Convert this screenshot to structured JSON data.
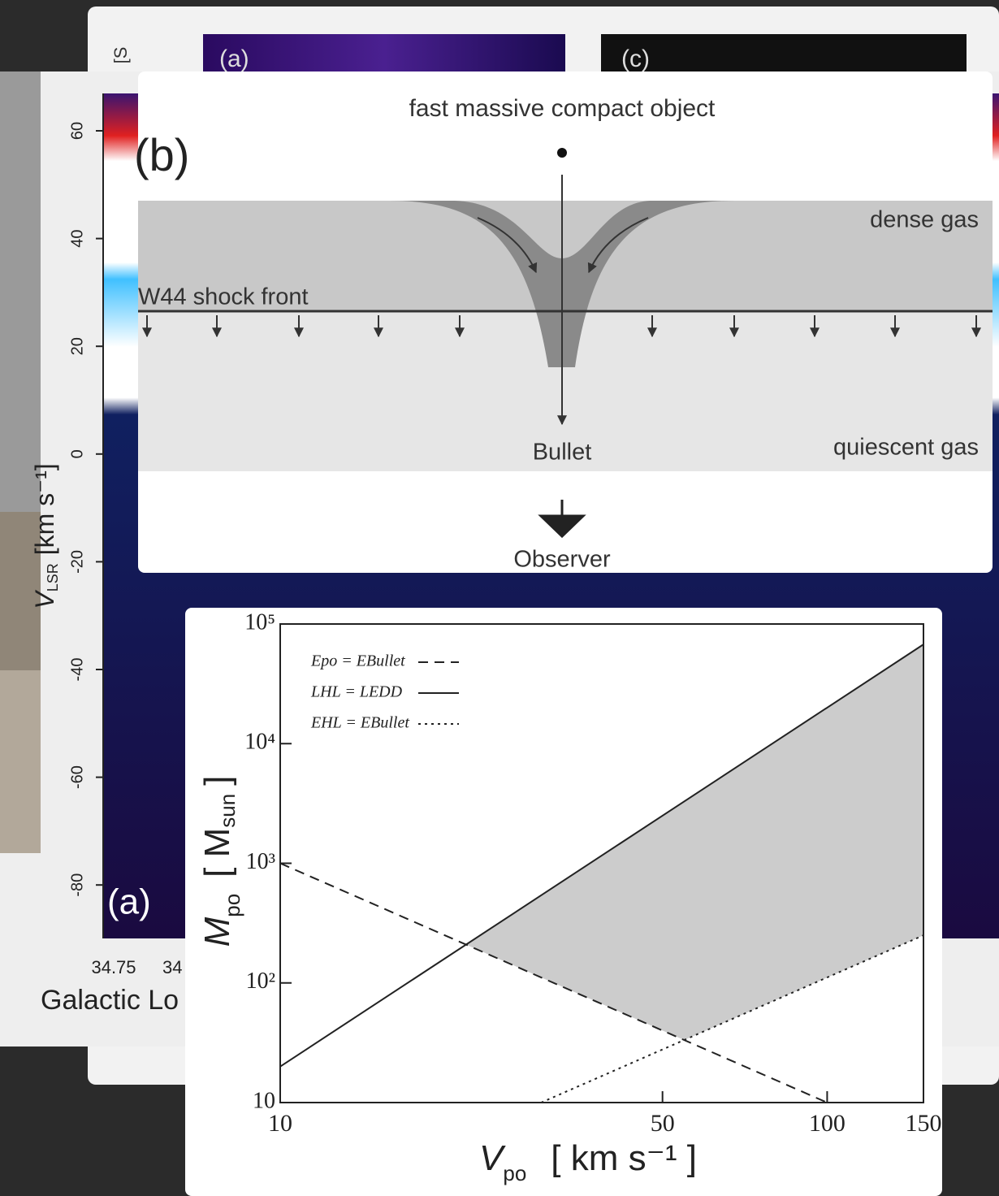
{
  "back_figure": {
    "panel_labels": [
      "(a)",
      "(c)"
    ],
    "corner_label": "[S"
  },
  "velocity_figure": {
    "ylabel": {
      "symbol": "V",
      "subscript": "LSR",
      "units": "[km s⁻¹]"
    },
    "yticks": [
      60,
      40,
      20,
      0,
      -20,
      -40,
      -60,
      -80
    ],
    "xticks": [
      "34.75",
      "34"
    ],
    "xlabel": "Galactic Lo",
    "panel_label": "(a)"
  },
  "diagram": {
    "panel_label": "(b)",
    "title": "fast massive compact object",
    "shock_label": "W44 shock front",
    "dense_label": "dense gas",
    "bullet_label": "Bullet",
    "quiescent_label": "quiescent gas",
    "observer_label": "Observer"
  },
  "chart_data": {
    "type": "line",
    "xlabel": {
      "symbol": "V",
      "subscript": "po",
      "units": "[ km s⁻¹ ]"
    },
    "ylabel": {
      "symbol": "M",
      "subscript": "po",
      "units": "[ M",
      "units_subscript": "sun",
      "close": "]"
    },
    "log_x": true,
    "log_y": true,
    "xlim": [
      10,
      150
    ],
    "ylim": [
      10,
      100000
    ],
    "xticks": [
      10,
      50,
      100,
      150
    ],
    "yticks": [
      10,
      {
        "value": 100,
        "label": "10²"
      },
      {
        "value": 1000,
        "label": "10³"
      },
      {
        "value": 10000,
        "label": "10⁴"
      },
      {
        "value": 100000,
        "label": "10⁵"
      }
    ],
    "fill_color": "#cccccc",
    "series": [
      {
        "name": "Epo = EBullet",
        "color": "#222222",
        "dash": "dashed",
        "x": [
          10,
          100
        ],
        "values": [
          1000,
          10
        ]
      },
      {
        "name": "LHL = LEDD",
        "color": "#222222",
        "dash": "solid",
        "x": [
          10,
          150
        ],
        "values": [
          20,
          67500
        ]
      },
      {
        "name": "EHL = EBullet",
        "color": "#222222",
        "dash": "dotted",
        "x": [
          30,
          150
        ],
        "values": [
          10,
          250
        ]
      }
    ]
  }
}
